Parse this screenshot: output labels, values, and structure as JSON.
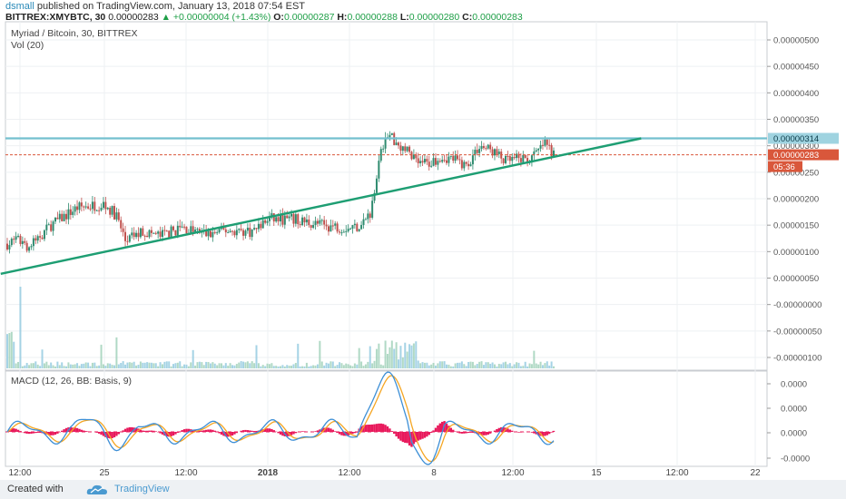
{
  "header": {
    "author": "dsmall",
    "published": "published on TradingView.com, January 13, 2018 07:54 EST",
    "symbol": "BITTREX:XMYBTC, 30",
    "price": "0.00000283",
    "change": "+0.00000004 (+1.43%)",
    "o_label": "O:",
    "o": "0.00000287",
    "h_label": "H:",
    "h": "0.00000288",
    "l_label": "L:",
    "l": "0.00000280",
    "c_label": "C:",
    "c": "0.00000283"
  },
  "footer": {
    "created_with": "Created with",
    "brand": "TradingView"
  },
  "colors": {
    "up": "#2e8b6f",
    "down": "#c0504d",
    "trend": "#1e9e73",
    "hline": "#74c0cf",
    "price_line": "#d9573b",
    "macd": "#3d8fd6",
    "signal": "#f5a623",
    "hist": "#e8185b",
    "volume": "#8ec8de"
  },
  "chart_data": [
    {
      "type": "candlestick",
      "title": "Myriad / Bitcoin, 30, BITTREX",
      "subtitle": "Vol (20)",
      "y_ticks": [
        "0.00000500",
        "0.00000450",
        "0.00000400",
        "0.00000350",
        "0.00000300",
        "0.00000250",
        "0.00000200",
        "0.00000150",
        "0.00000100",
        "0.00000050",
        "-0.00000000",
        "-0.00000050",
        "-0.00000100"
      ],
      "ylim": [
        -1.1e-06,
        5.3e-06
      ],
      "x_ticks": [
        "12:00",
        "25",
        "12:00",
        "2018",
        "12:00",
        "8",
        "12:00",
        "15",
        "12:00",
        "22"
      ],
      "key_closes": [
        {
          "i": 0,
          "v": 1.15e-06
        },
        {
          "i": 6,
          "v": 1.22e-06
        },
        {
          "i": 10,
          "v": 1.08e-06
        },
        {
          "i": 20,
          "v": 1.5e-06
        },
        {
          "i": 32,
          "v": 1.83e-06
        },
        {
          "i": 44,
          "v": 1.9e-06
        },
        {
          "i": 50,
          "v": 1.68e-06
        },
        {
          "i": 54,
          "v": 1.2e-06
        },
        {
          "i": 62,
          "v": 1.38e-06
        },
        {
          "i": 70,
          "v": 1.3e-06
        },
        {
          "i": 80,
          "v": 1.45e-06
        },
        {
          "i": 92,
          "v": 1.32e-06
        },
        {
          "i": 100,
          "v": 1.4e-06
        },
        {
          "i": 112,
          "v": 1.38e-06
        },
        {
          "i": 120,
          "v": 1.62e-06
        },
        {
          "i": 132,
          "v": 1.6e-06
        },
        {
          "i": 144,
          "v": 1.5e-06
        },
        {
          "i": 156,
          "v": 1.45e-06
        },
        {
          "i": 162,
          "v": 1.5e-06
        },
        {
          "i": 166,
          "v": 1.75e-06
        },
        {
          "i": 169,
          "v": 2.45e-06
        },
        {
          "i": 172,
          "v": 3.05e-06
        },
        {
          "i": 175,
          "v": 3.2e-06
        },
        {
          "i": 180,
          "v": 3e-06
        },
        {
          "i": 186,
          "v": 2.8e-06
        },
        {
          "i": 192,
          "v": 2.65e-06
        },
        {
          "i": 198,
          "v": 2.8e-06
        },
        {
          "i": 204,
          "v": 2.75e-06
        },
        {
          "i": 210,
          "v": 2.62e-06
        },
        {
          "i": 216,
          "v": 3e-06
        },
        {
          "i": 222,
          "v": 2.9e-06
        },
        {
          "i": 228,
          "v": 2.7e-06
        },
        {
          "i": 234,
          "v": 2.75e-06
        },
        {
          "i": 240,
          "v": 2.75e-06
        },
        {
          "i": 246,
          "v": 3.05e-06
        },
        {
          "i": 250,
          "v": 2.83e-06
        }
      ],
      "horizontal_line": {
        "value": 3.14e-06,
        "label": "0.00000314"
      },
      "current_price": {
        "value": 2.83e-06,
        "label": "0.00000283",
        "countdown": "05:36"
      },
      "trendline": {
        "from": {
          "i": -3,
          "v": 5.8e-07
        },
        "to": {
          "i": 290,
          "v": 3.14e-06
        }
      }
    },
    {
      "type": "line",
      "title": "MACD (12, 26, BB: Basis, 9)",
      "y_ticks": [
        "0.0000",
        "0.0000",
        "0.0000",
        "-0.0000"
      ],
      "series": [
        {
          "name": "MACD",
          "role": "macd"
        },
        {
          "name": "Signal",
          "role": "signal"
        },
        {
          "name": "Histogram",
          "role": "histogram"
        }
      ]
    }
  ]
}
